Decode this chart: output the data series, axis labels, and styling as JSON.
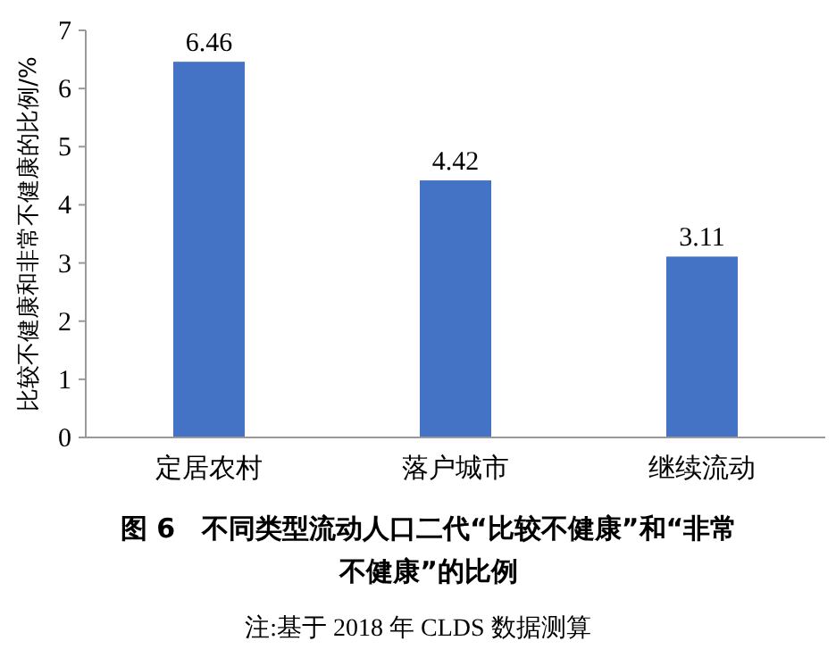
{
  "chart_data": {
    "type": "bar",
    "title": "图 6　不同类型流动人口二代“比较不健康”和“非常不健康”的比例",
    "annotations": [
      "注:基于 2018 年 CLDS 数据测算"
    ],
    "ylabel": "比较不健康和非常不健康的比例/%",
    "categories": [
      "定居农村",
      "落户城市",
      "继续流动"
    ],
    "values": [
      6.46,
      4.42,
      3.11
    ],
    "color": "#4472c4",
    "ylim": [
      0,
      7
    ],
    "yticks": [
      0,
      1,
      2,
      3,
      4,
      5,
      6,
      7
    ],
    "data_labels": true
  }
}
